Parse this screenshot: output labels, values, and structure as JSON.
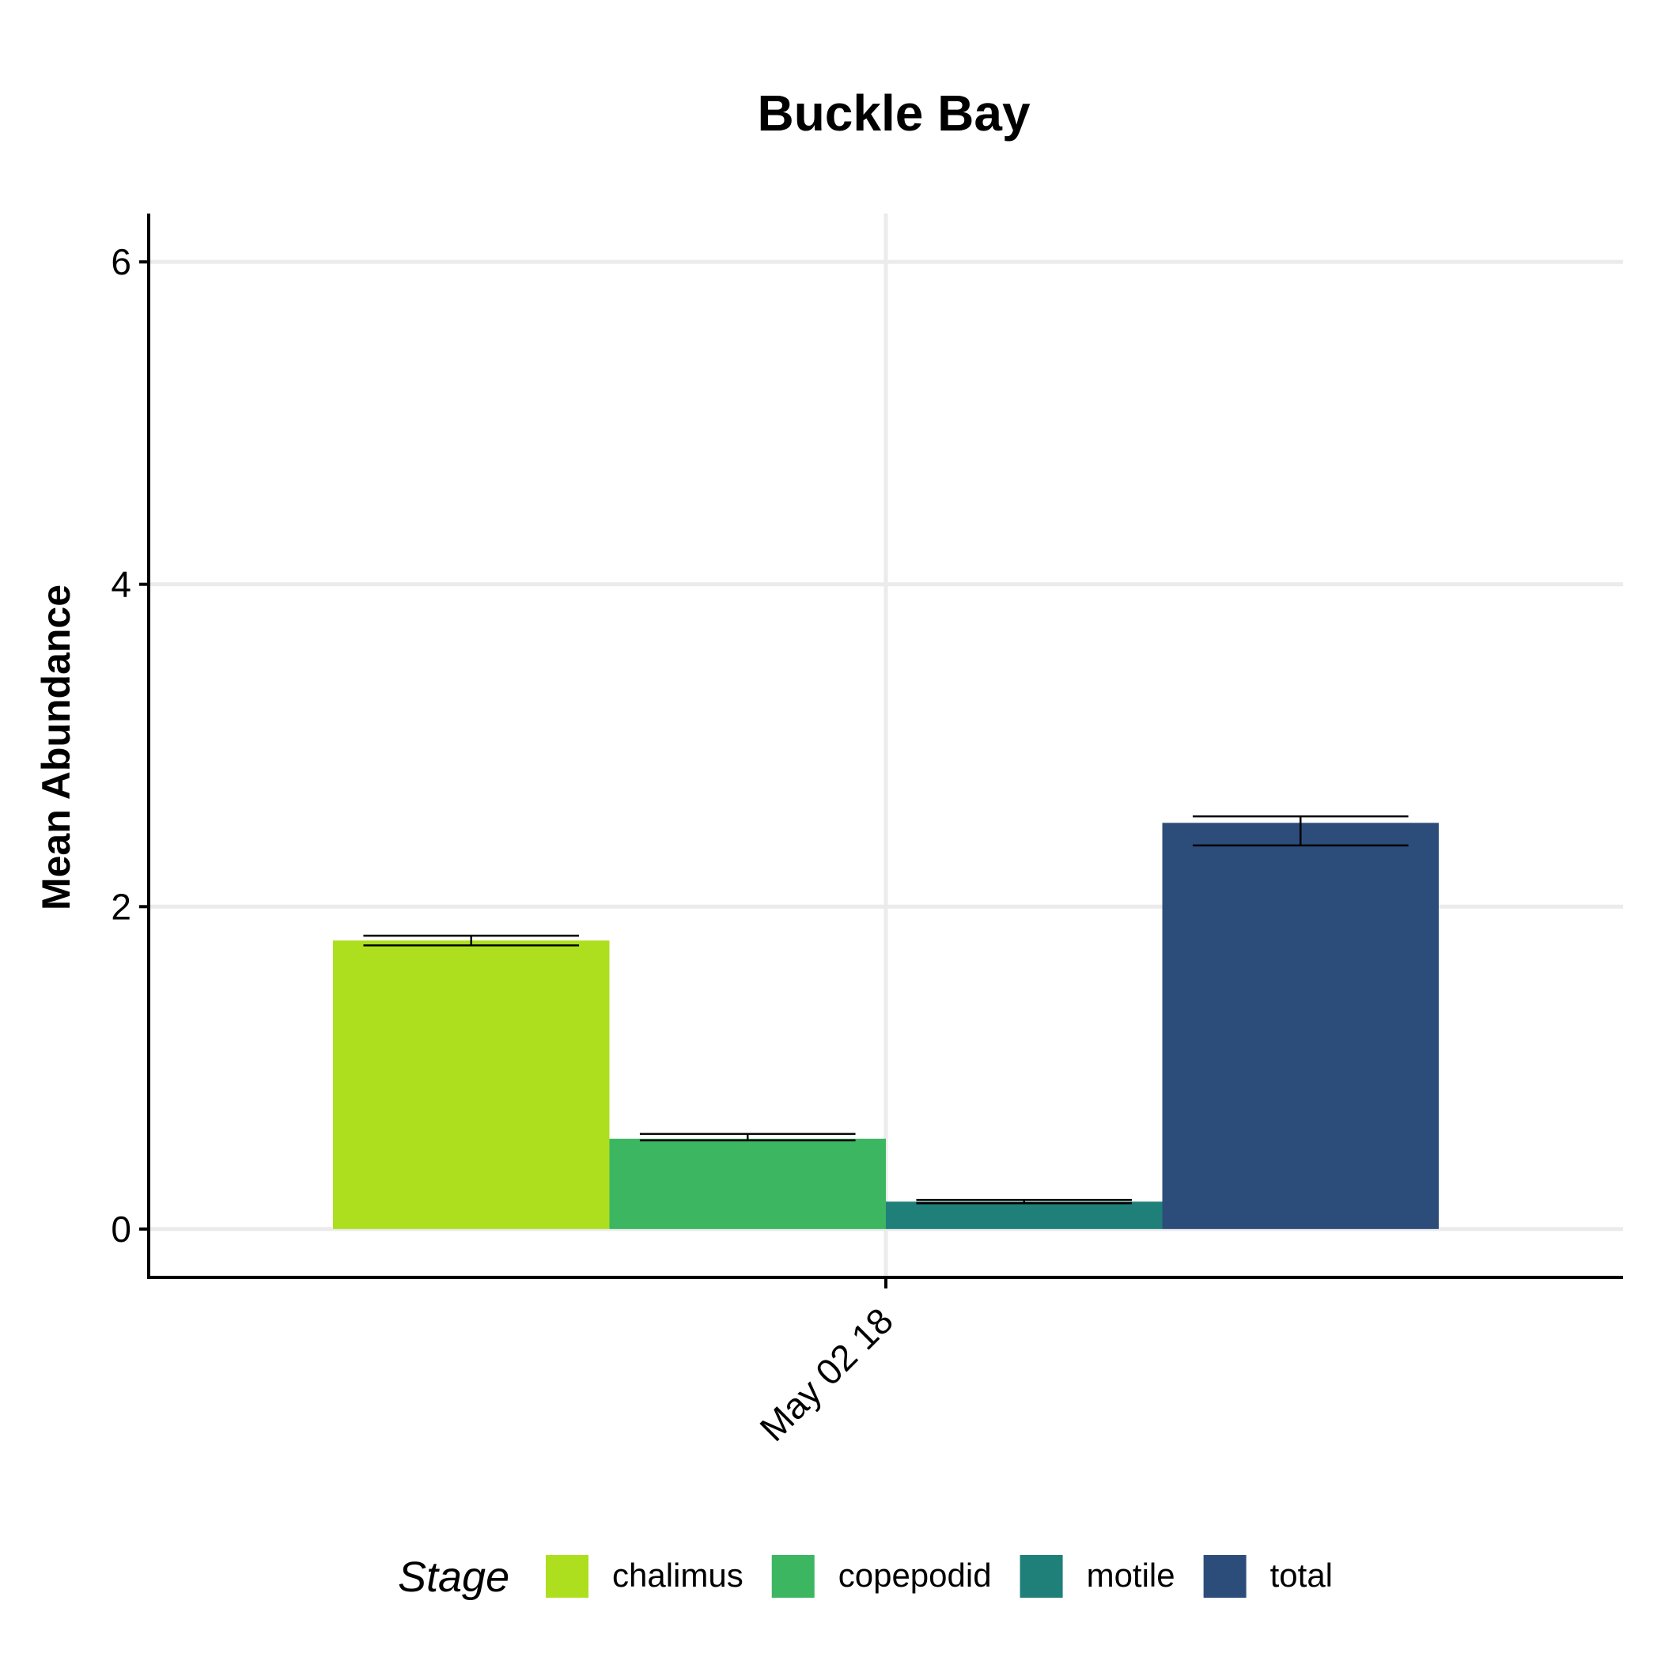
{
  "chart_data": {
    "type": "bar",
    "title": "Buckle Bay",
    "xlabel": "",
    "ylabel": "Mean Abundance",
    "categories": [
      "May 02 18"
    ],
    "ylim": [
      -0.3,
      6.3
    ],
    "yticks": [
      0,
      2,
      4,
      6
    ],
    "grid": true,
    "legend": {
      "title": "Stage",
      "position": "bottom"
    },
    "series": [
      {
        "name": "chalimus",
        "color": "#addf1f",
        "values": [
          1.79
        ],
        "err_low": [
          1.76
        ],
        "err_high": [
          1.82
        ]
      },
      {
        "name": "copepodid",
        "color": "#3cb660",
        "values": [
          0.56
        ],
        "err_low": [
          0.55
        ],
        "err_high": [
          0.59
        ]
      },
      {
        "name": "motile",
        "color": "#1f7f79",
        "values": [
          0.17
        ],
        "err_low": [
          0.16
        ],
        "err_high": [
          0.18
        ]
      },
      {
        "name": "total",
        "color": "#2c4d7a",
        "values": [
          2.52
        ],
        "err_low": [
          2.38
        ],
        "err_high": [
          2.56
        ]
      }
    ]
  }
}
